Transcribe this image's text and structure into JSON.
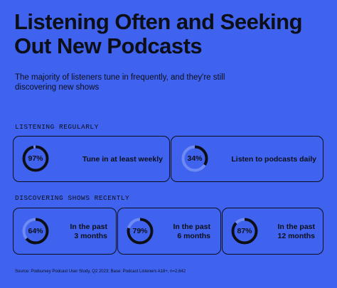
{
  "title": "Listening Often and Seeking Out New Podcasts",
  "subtitle": "The majority of listeners tune in frequently, and they're still discovering new shows",
  "sections": [
    {
      "label": "LISTENING REGULARLY",
      "stats": [
        {
          "percent_text": "97%",
          "percent": 97,
          "label": "Tune in at least weekly"
        },
        {
          "percent_text": "34%",
          "percent": 34,
          "label": "Listen to podcasts daily"
        }
      ]
    },
    {
      "label": "DISCOVERING SHOWS RECENTLY",
      "stats": [
        {
          "percent_text": "64%",
          "percent": 64,
          "label_line1": "In the past",
          "label_line2": "3 months"
        },
        {
          "percent_text": "79%",
          "percent": 79,
          "label_line1": "In the past",
          "label_line2": "6 months"
        },
        {
          "percent_text": "87%",
          "percent": 87,
          "label_line1": "In the past",
          "label_line2": "12 months"
        }
      ]
    }
  ],
  "source": "Source: Podsurvey Podcast User Study, Q2 2023; Base: Podcast Listeners A18+, n=2,642",
  "colors": {
    "background": "#3f63ee",
    "ink": "#0d0f18",
    "track": "#6f8af3"
  }
}
